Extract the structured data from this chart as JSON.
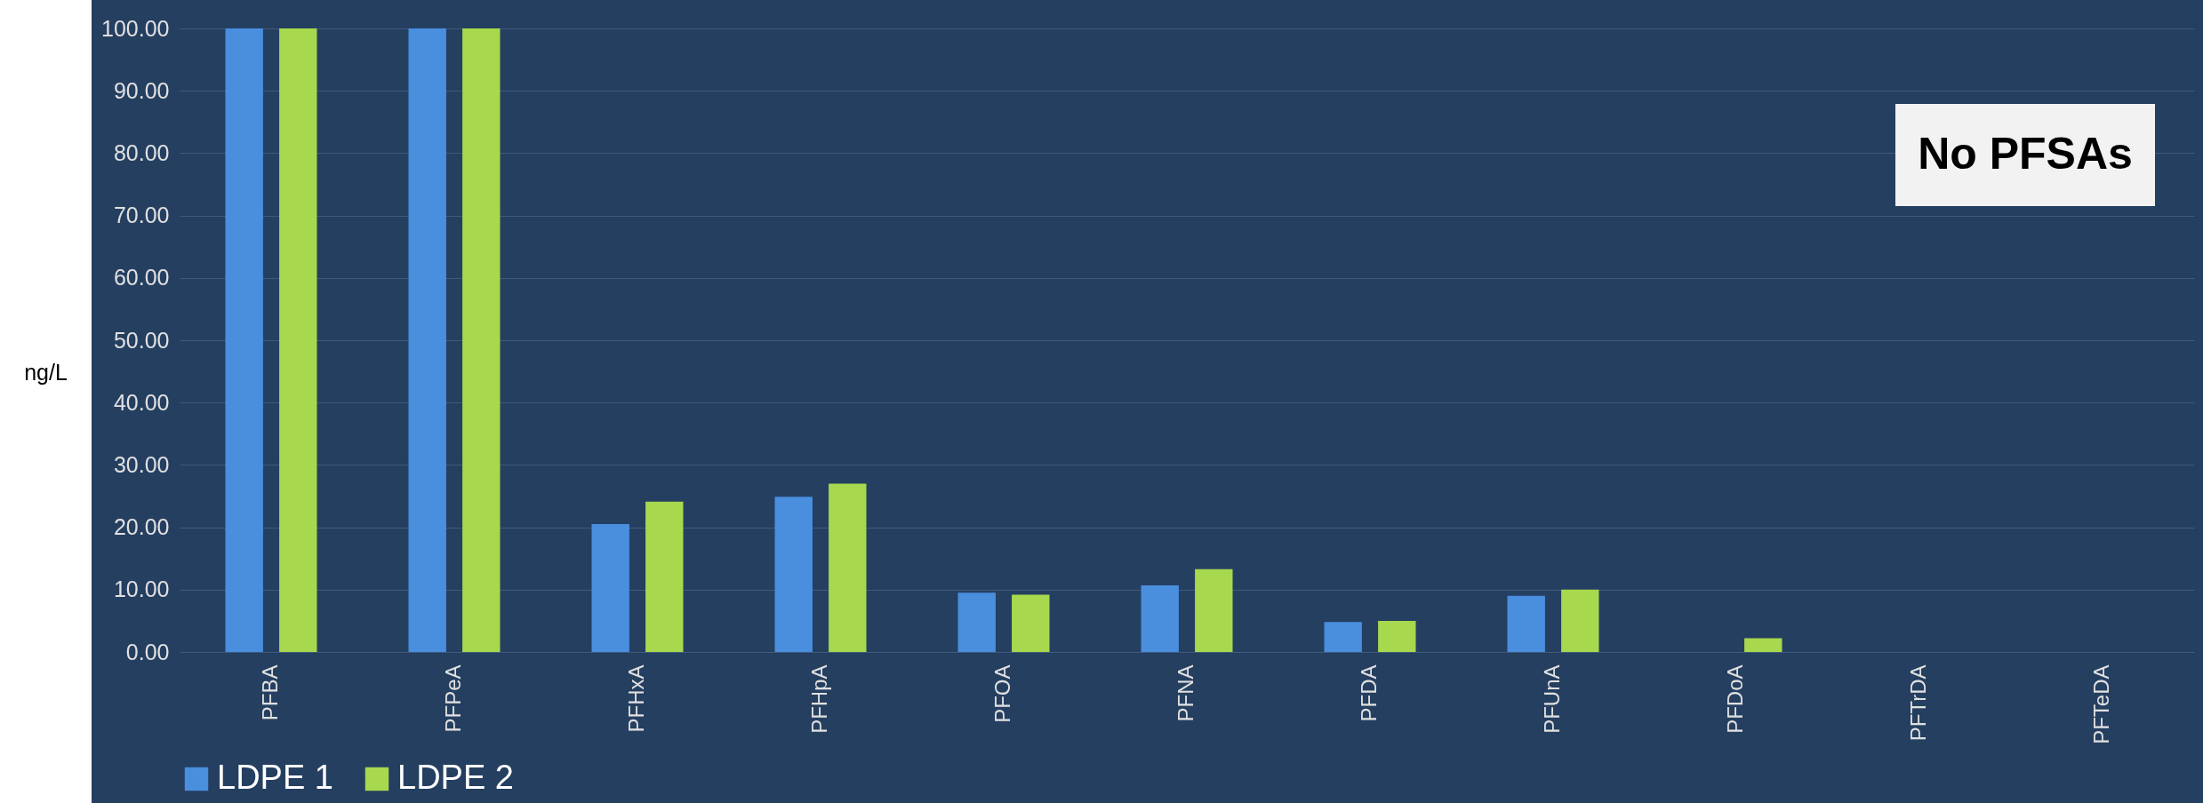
{
  "chart_data": {
    "type": "bar",
    "ylabel": "ng/L",
    "annotations": [
      "No PFSAs"
    ],
    "categories": [
      "PFBA",
      "PFPeA",
      "PFHxA",
      "PFHpA",
      "PFOA",
      "PFNA",
      "PFDA",
      "PFUnA",
      "PFDoA",
      "PFTrDA",
      "PFTeDA"
    ],
    "series": [
      {
        "name": "LDPE 1",
        "color": "#4a8ede",
        "values": [
          100,
          100,
          20.5,
          24.9,
          9.5,
          10.7,
          4.8,
          9.0,
          0,
          0,
          0
        ]
      },
      {
        "name": "LDPE 2",
        "color": "#a8d84e",
        "values": [
          100,
          100,
          24.1,
          27.0,
          9.2,
          13.3,
          5.0,
          10.0,
          2.2,
          0,
          0
        ]
      }
    ],
    "ylim": [
      0,
      100
    ],
    "yticks": [
      {
        "value": 0,
        "label": "0.00"
      },
      {
        "value": 10,
        "label": "10.00"
      },
      {
        "value": 20,
        "label": "20.00"
      },
      {
        "value": 30,
        "label": "30.00"
      },
      {
        "value": 40,
        "label": "40.00"
      },
      {
        "value": 50,
        "label": "50.00"
      },
      {
        "value": 60,
        "label": "60.00"
      },
      {
        "value": 70,
        "label": "70.00"
      },
      {
        "value": 80,
        "label": "80.00"
      },
      {
        "value": 90,
        "label": "90.00"
      },
      {
        "value": 100,
        "label": "100.00"
      }
    ],
    "grid": "y",
    "legend": "bottom"
  }
}
